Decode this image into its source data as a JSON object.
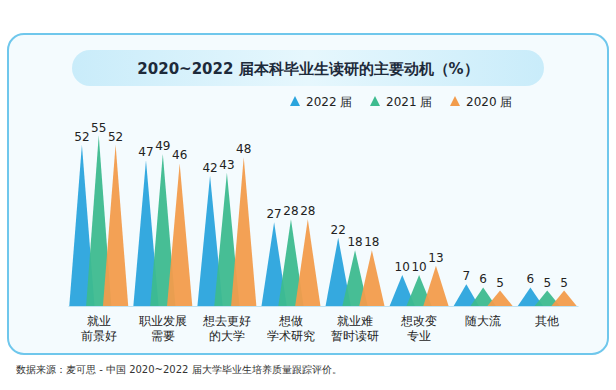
{
  "chart_data": {
    "type": "spike",
    "title": "2020~2022 届本科毕业生读研的主要动机（%）",
    "note": "数据来源：麦可思 - 中国 2020~2022 届大学毕业生培养质量跟踪评价。",
    "categories": [
      "就业\n前景好",
      "职业发展\n需要",
      "想去更好\n的大学",
      "想做\n学术研究",
      "就业难\n暂时读研",
      "想改变\n专业",
      "随大流",
      "其他"
    ],
    "series": [
      {
        "name": "2022 届",
        "color": "#2aa4dd",
        "values": [
          52,
          47,
          42,
          27,
          22,
          10,
          7,
          6
        ]
      },
      {
        "name": "2021 届",
        "color": "#3dbb8f",
        "values": [
          55,
          49,
          43,
          28,
          18,
          10,
          6,
          5
        ]
      },
      {
        "name": "2020 届",
        "color": "#f29c4c",
        "values": [
          52,
          46,
          48,
          28,
          18,
          13,
          5,
          5
        ]
      }
    ],
    "ylim": [
      0,
      60
    ],
    "data_labels": true,
    "tick_labels": "x",
    "legend": "top-right"
  }
}
